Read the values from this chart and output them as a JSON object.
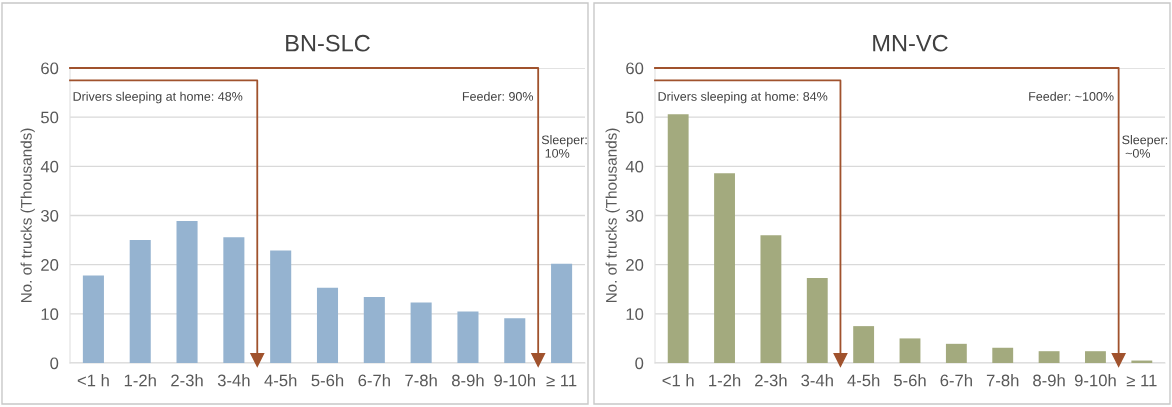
{
  "chart_data": [
    {
      "type": "bar",
      "title": "BN-SLC",
      "ylabel": "No. of trucks (Thousands)",
      "categories": [
        "<1 h",
        "1-2h",
        "2-3h",
        "3-4h",
        "4-5h",
        "5-6h",
        "6-7h",
        "7-8h",
        "8-9h",
        "9-10h",
        "≥ 11"
      ],
      "series": [
        {
          "color": "#95b3d0",
          "values": [
            17.8,
            25.0,
            28.9,
            25.6,
            22.9,
            15.3,
            13.4,
            12.3,
            10.5,
            9.1,
            20.2
          ]
        }
      ],
      "ylim": [
        0,
        60
      ],
      "yticks": [
        0,
        10,
        20,
        30,
        40,
        50,
        60
      ],
      "grid": "y",
      "annotations": [
        "Drivers sleeping at home: 48%",
        "Feeder: 90%",
        "Sleeper:\n 10%"
      ]
    },
    {
      "type": "bar",
      "title": "MN-VC",
      "ylabel": "No. of trucks (Thousands)",
      "categories": [
        "<1 h",
        "1-2h",
        "2-3h",
        "3-4h",
        "4-5h",
        "5-6h",
        "6-7h",
        "7-8h",
        "8-9h",
        "9-10h",
        "≥ 11"
      ],
      "series": [
        {
          "color": "#a3aa7e",
          "values": [
            50.6,
            38.6,
            26.0,
            17.3,
            7.5,
            5.0,
            3.9,
            3.1,
            2.4,
            2.4,
            0.5
          ]
        }
      ],
      "ylim": [
        0,
        60
      ],
      "yticks": [
        0,
        10,
        20,
        30,
        40,
        50,
        60
      ],
      "grid": "y",
      "annotations": [
        "Drivers sleeping at home: 84%",
        "Feeder: ~100%",
        "Sleeper:\n ~0%"
      ]
    }
  ]
}
